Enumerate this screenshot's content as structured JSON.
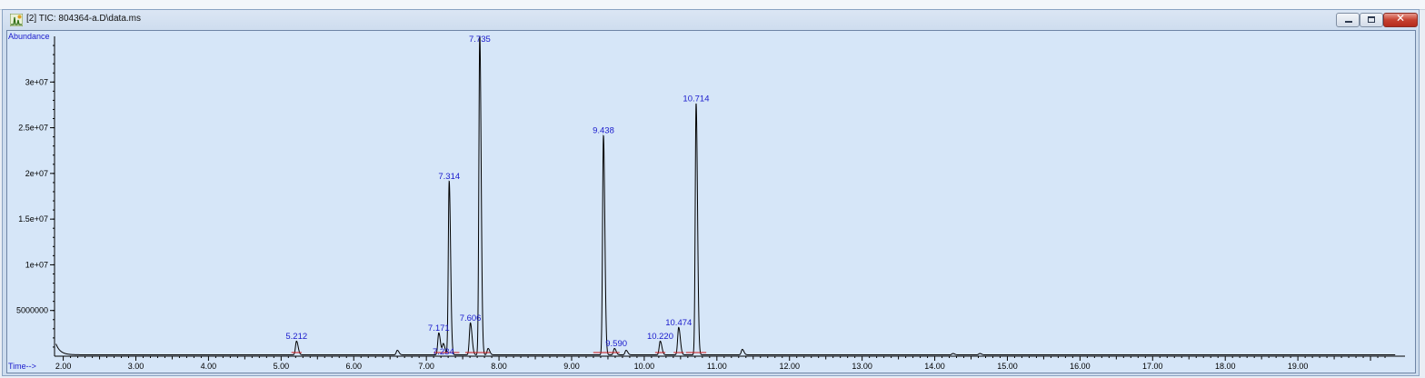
{
  "window": {
    "title": "[2] TIC: 804364-a.D\\data.ms",
    "icon": "chromatogram-app-icon",
    "controls": {
      "minimize_icon": "minimize-icon",
      "maximize_icon": "maximize-icon",
      "close_icon": "close-icon",
      "close_glyph": "✕"
    }
  },
  "chart_data": {
    "type": "line",
    "ylabel": "Abundance",
    "xlabel": "Time-->",
    "xlim": [
      1.88,
      20.4
    ],
    "ylim": [
      0,
      35000000
    ],
    "x_ticks": [
      2.0,
      3.0,
      4.0,
      5.0,
      6.0,
      7.0,
      8.0,
      9.0,
      10.0,
      11.0,
      12.0,
      13.0,
      14.0,
      15.0,
      16.0,
      17.0,
      18.0,
      19.0
    ],
    "x_tick_labels": [
      "2.00",
      "3.00",
      "4.00",
      "5.00",
      "6.00",
      "7.00",
      "8.00",
      "9.00",
      "10.00",
      "11.00",
      "12.00",
      "13.00",
      "14.00",
      "15.00",
      "16.00",
      "17.00",
      "18.00",
      "19.00"
    ],
    "y_ticks": [
      5000000,
      10000000,
      15000000,
      20000000,
      25000000,
      30000000
    ],
    "y_tick_labels": [
      "5000000",
      "1e+07",
      "1.5e+07",
      "2e+07",
      "2.5e+07",
      "3e+07"
    ],
    "colors": {
      "trace": "#000000",
      "label": "#1a1acc",
      "baseline": "#d11a1a",
      "axis": "#000000",
      "background": "#d6e6f8"
    },
    "baseline_level": 400000,
    "peaks": [
      {
        "label": "5.212",
        "x": 5.212,
        "y": 1500000
      },
      {
        "label": "7.171",
        "x": 7.171,
        "y": 2400000
      },
      {
        "label": "7.234",
        "x": 7.234,
        "y": 1200000
      },
      {
        "label": "7.314",
        "x": 7.314,
        "y": 19000000
      },
      {
        "label": "7.606",
        "x": 7.606,
        "y": 3500000
      },
      {
        "label": "7.735",
        "x": 7.735,
        "y": 35000000
      },
      {
        "label": "9.438",
        "x": 9.438,
        "y": 24000000
      },
      {
        "label": "9.590",
        "x": 9.59,
        "y": 700000
      },
      {
        "label": "10.220",
        "x": 10.22,
        "y": 1500000
      },
      {
        "label": "10.474",
        "x": 10.474,
        "y": 3000000
      },
      {
        "label": "10.714",
        "x": 10.714,
        "y": 27500000
      }
    ],
    "minor_bumps": [
      {
        "x": 6.6,
        "y": 500000
      },
      {
        "x": 7.85,
        "y": 700000
      },
      {
        "x": 9.75,
        "y": 500000
      },
      {
        "x": 11.35,
        "y": 600000
      },
      {
        "x": 14.25,
        "y": 150000
      },
      {
        "x": 14.62,
        "y": 150000
      }
    ],
    "start_tail": {
      "x": 1.9,
      "y": 1200000
    }
  }
}
